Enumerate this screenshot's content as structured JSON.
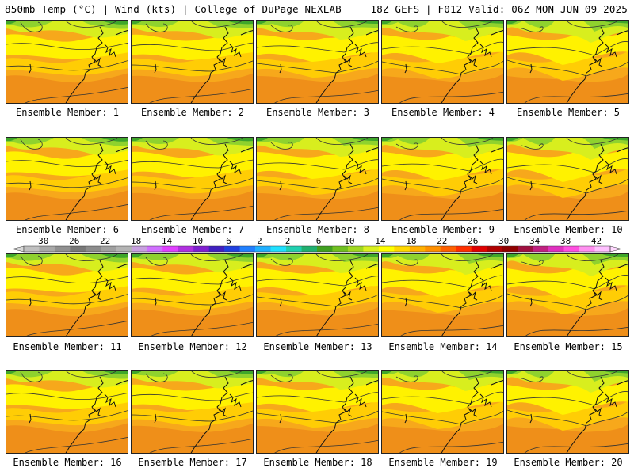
{
  "header": {
    "left_title": "850mb Temp (°C) | Wind (kts) | College of DuPage NEXLAB",
    "right_title": "18Z GEFS | F012 Valid: 06Z MON JUN 09 2025"
  },
  "panels": [
    {
      "label": "Ensemble Member: 1"
    },
    {
      "label": "Ensemble Member: 2"
    },
    {
      "label": "Ensemble Member: 3"
    },
    {
      "label": "Ensemble Member: 4"
    },
    {
      "label": "Ensemble Member: 5"
    },
    {
      "label": "Ensemble Member: 6"
    },
    {
      "label": "Ensemble Member: 7"
    },
    {
      "label": "Ensemble Member: 8"
    },
    {
      "label": "Ensemble Member: 9"
    },
    {
      "label": "Ensemble Member: 10"
    },
    {
      "label": "Ensemble Member: 11"
    },
    {
      "label": "Ensemble Member: 12"
    },
    {
      "label": "Ensemble Member: 13"
    },
    {
      "label": "Ensemble Member: 14"
    },
    {
      "label": "Ensemble Member: 15"
    },
    {
      "label": "Ensemble Member: 16"
    },
    {
      "label": "Ensemble Member: 17"
    },
    {
      "label": "Ensemble Member: 18"
    },
    {
      "label": "Ensemble Member: 19"
    },
    {
      "label": "Ensemble Member: 20"
    }
  ],
  "colorbar": {
    "tick_labels": [
      "−30",
      "−26",
      "−22",
      "−18",
      "−14",
      "−10",
      "−6",
      "−2",
      "2",
      "6",
      "10",
      "14",
      "18",
      "22",
      "26",
      "30",
      "34",
      "38",
      "42"
    ],
    "colors": [
      "#c0c0c0",
      "#a8a8a8",
      "#909090",
      "#787878",
      "#8c8c8c",
      "#a0a0a0",
      "#b4b4b4",
      "#c8a0e0",
      "#d070ff",
      "#e040ff",
      "#b030e0",
      "#8020d0",
      "#4020c0",
      "#2040e0",
      "#2080ff",
      "#20b0ff",
      "#20e0ff",
      "#20d0b0",
      "#20b070",
      "#40a020",
      "#70c020",
      "#a0d820",
      "#d8f020",
      "#ffff00",
      "#ffd800",
      "#ffb000",
      "#ff9000",
      "#ff6000",
      "#ff3000",
      "#e00000",
      "#b00000",
      "#900000",
      "#a01040",
      "#c02080",
      "#e030c0",
      "#ff50e0",
      "#ff90f0",
      "#ffc0ff"
    ]
  },
  "palette": {
    "dark_green": "#3fa72a",
    "green": "#8fd22e",
    "yellow_green": "#d8ee1e",
    "yellow": "#fff200",
    "light_orange": "#ffcd05",
    "orange": "#f7a81b",
    "dark_orange": "#ef8f19"
  }
}
